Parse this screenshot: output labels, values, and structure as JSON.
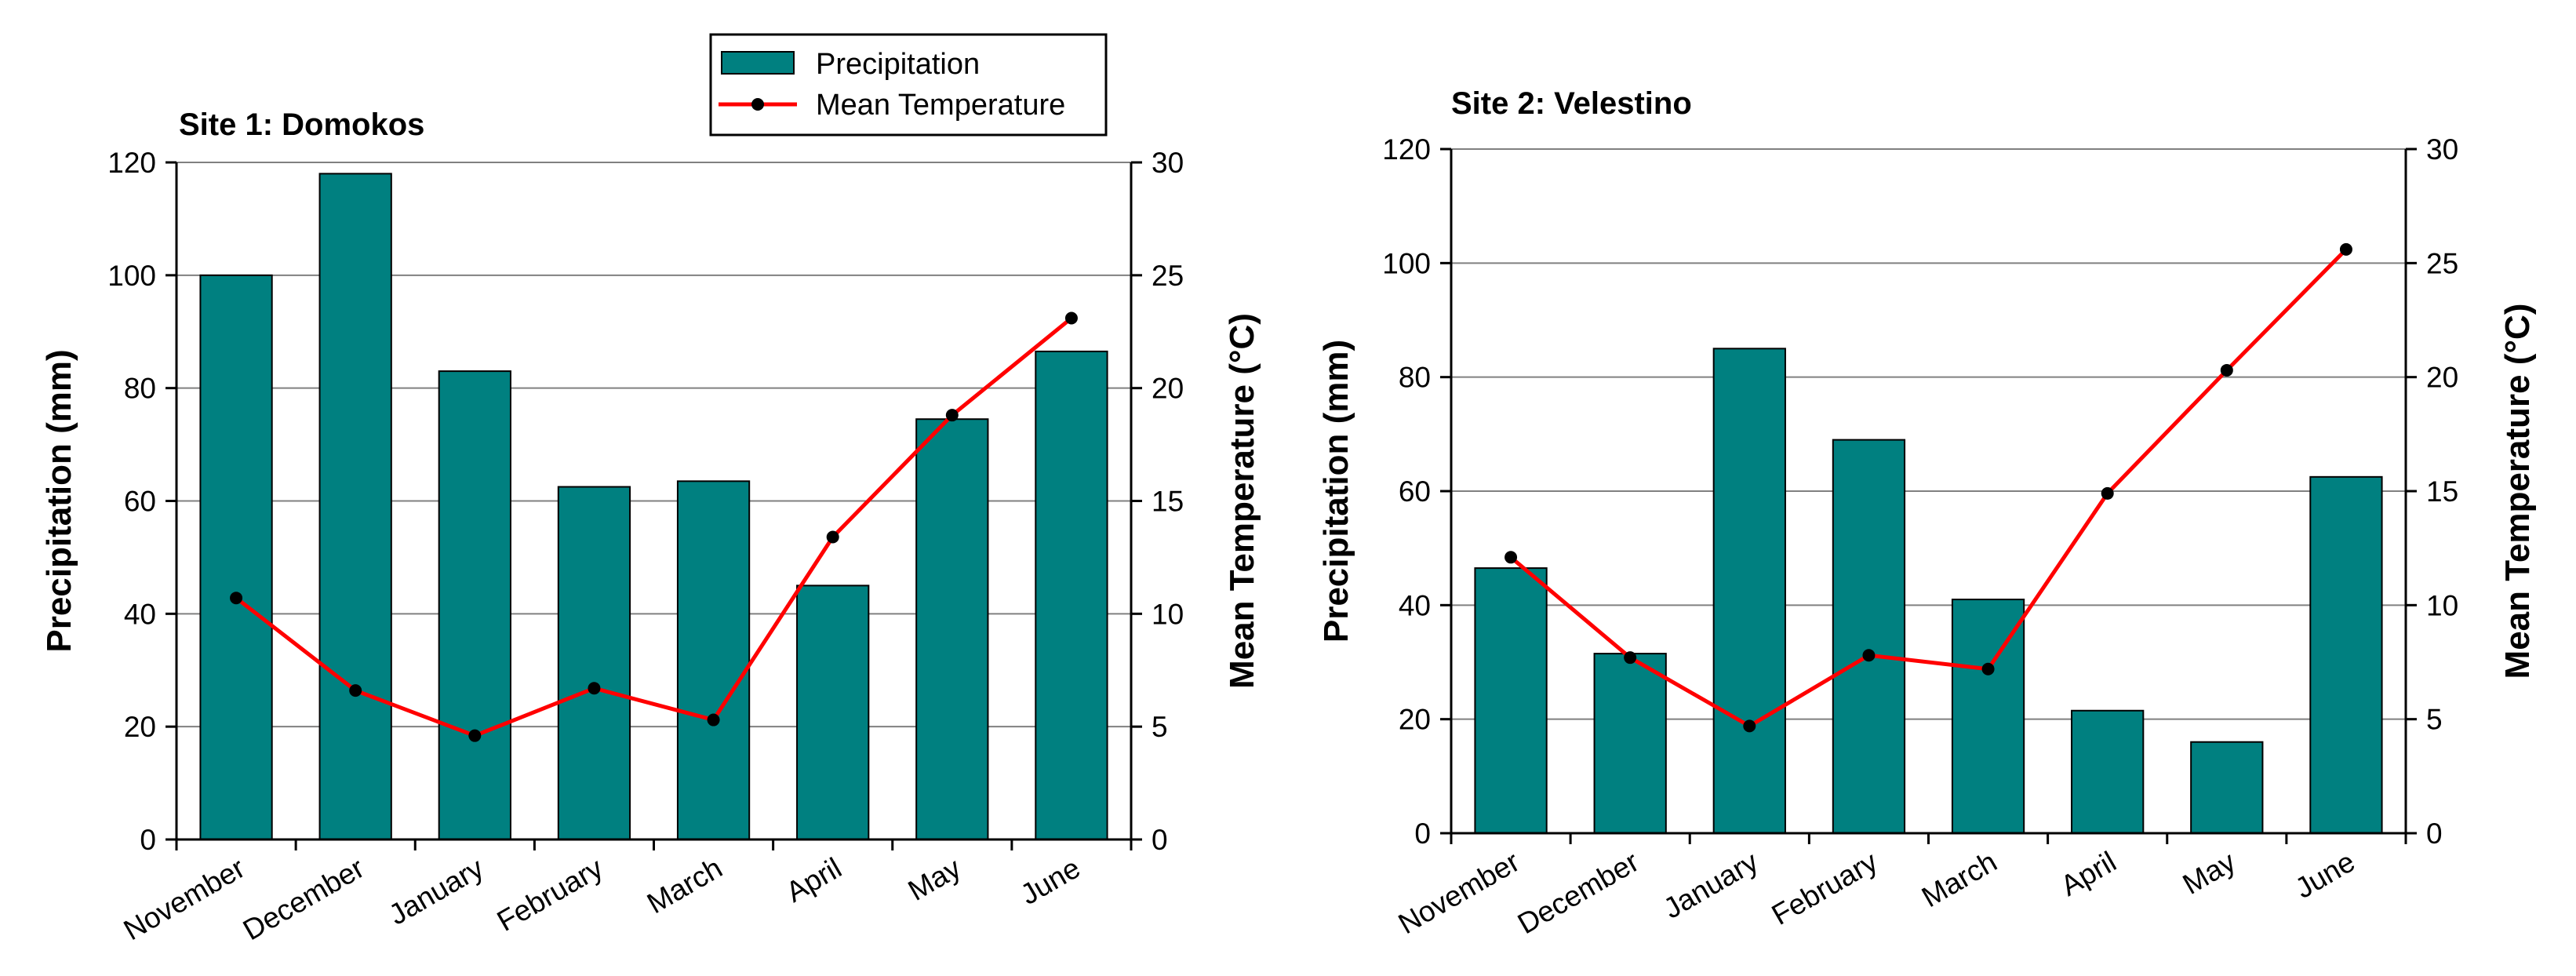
{
  "legend": {
    "precipitation_label": "Precipitation",
    "temperature_label": "Mean Temperature"
  },
  "colors": {
    "bar_fill": "#008080",
    "bar_stroke": "#000000",
    "line": "#ff0000",
    "marker": "#000000",
    "grid": "#808080"
  },
  "chart_data": [
    {
      "type": "bar",
      "title": "Site 1: Domokos",
      "categories": [
        "November",
        "December",
        "January",
        "February",
        "March",
        "April",
        "May",
        "June"
      ],
      "ylabel": "Precipitation (mm)",
      "y2label": "Mean Temperature (°C)",
      "ylim": [
        0,
        120
      ],
      "y2lim": [
        0,
        30
      ],
      "yticks": [
        "0",
        "20",
        "40",
        "60",
        "80",
        "100",
        "120"
      ],
      "y2ticks": [
        "0",
        "5",
        "10",
        "15",
        "20",
        "25",
        "30"
      ],
      "grid": true,
      "legend_position": "top-right",
      "series": [
        {
          "name": "Precipitation",
          "type": "bar",
          "axis": "left",
          "values": [
            100,
            118,
            83,
            62.5,
            63.5,
            45,
            74.5,
            86.5
          ]
        },
        {
          "name": "Mean Temperature",
          "type": "line",
          "axis": "right",
          "values": [
            10.7,
            6.6,
            4.6,
            6.7,
            5.3,
            13.4,
            18.8,
            23.1
          ]
        }
      ]
    },
    {
      "type": "bar",
      "title": "Site 2: Velestino",
      "categories": [
        "November",
        "December",
        "January",
        "February",
        "March",
        "April",
        "May",
        "June"
      ],
      "ylabel": "Precipitation (mm)",
      "y2label": "Mean Temperature (°C)",
      "ylim": [
        0,
        120
      ],
      "y2lim": [
        0,
        30
      ],
      "yticks": [
        "0",
        "20",
        "40",
        "60",
        "80",
        "100",
        "120"
      ],
      "y2ticks": [
        "0",
        "5",
        "10",
        "15",
        "20",
        "25",
        "30"
      ],
      "grid": true,
      "series": [
        {
          "name": "Precipitation",
          "type": "bar",
          "axis": "left",
          "values": [
            46.5,
            31.5,
            85,
            69,
            41,
            21.5,
            16,
            62.5
          ]
        },
        {
          "name": "Mean Temperature",
          "type": "line",
          "axis": "right",
          "values": [
            12.1,
            7.7,
            4.7,
            7.8,
            7.2,
            14.9,
            20.3,
            25.6
          ]
        }
      ]
    }
  ]
}
